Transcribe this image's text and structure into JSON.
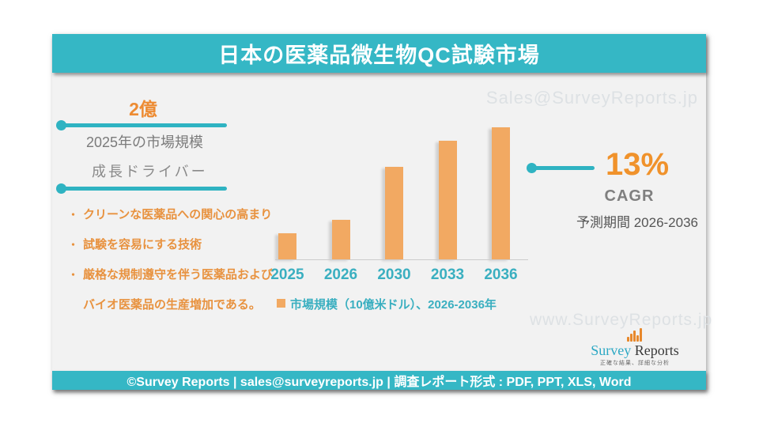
{
  "header": {
    "title": "日本の医薬品微生物QC試験市場"
  },
  "watermarks": {
    "top": "Sales@SurveyReports.jp",
    "bottom": "www.SurveyReports.jp"
  },
  "market_size": {
    "value": "2億",
    "label": "2025年の市場規模"
  },
  "growth_drivers": {
    "heading": "成長ドライバー",
    "items": [
      "クリーンな医薬品への関心の高まり",
      "試験を容易にする技術",
      "厳格な規制遵守を伴う医薬品およびバイオ医薬品の生産増加である。"
    ]
  },
  "cagr": {
    "value": "13%",
    "label": "CAGR",
    "period": "予測期間 2026-2036"
  },
  "chart_data": {
    "type": "bar",
    "categories": [
      "2025",
      "2026",
      "2030",
      "2033",
      "2036"
    ],
    "values": [
      0.2,
      0.3,
      0.7,
      0.9,
      1.0
    ],
    "title": "日本の医薬品微生物QC試験市場",
    "xlabel": "",
    "ylabel": "市場規模（10億米ドル）",
    "ylim": [
      0,
      1.0
    ],
    "grid": false,
    "legend": "市場規模（10億米ドル）、2026-2036年",
    "legend_position": "bottom",
    "bar_color": "#f2a962",
    "label_color": "#3aafc0"
  },
  "logo": {
    "name_primary": "Survey",
    "name_secondary": "Reports",
    "tagline": "正確な結果、詳細な分析"
  },
  "footer": {
    "text": "©Survey Reports | sales@surveyreports.jp |  調査レポート形式 : PDF, PPT, XLS, Word"
  },
  "colors": {
    "teal": "#35b7c5",
    "orange_accent": "#ed8b32",
    "bullet_orange": "#e8923f",
    "bar": "#f2a962"
  }
}
